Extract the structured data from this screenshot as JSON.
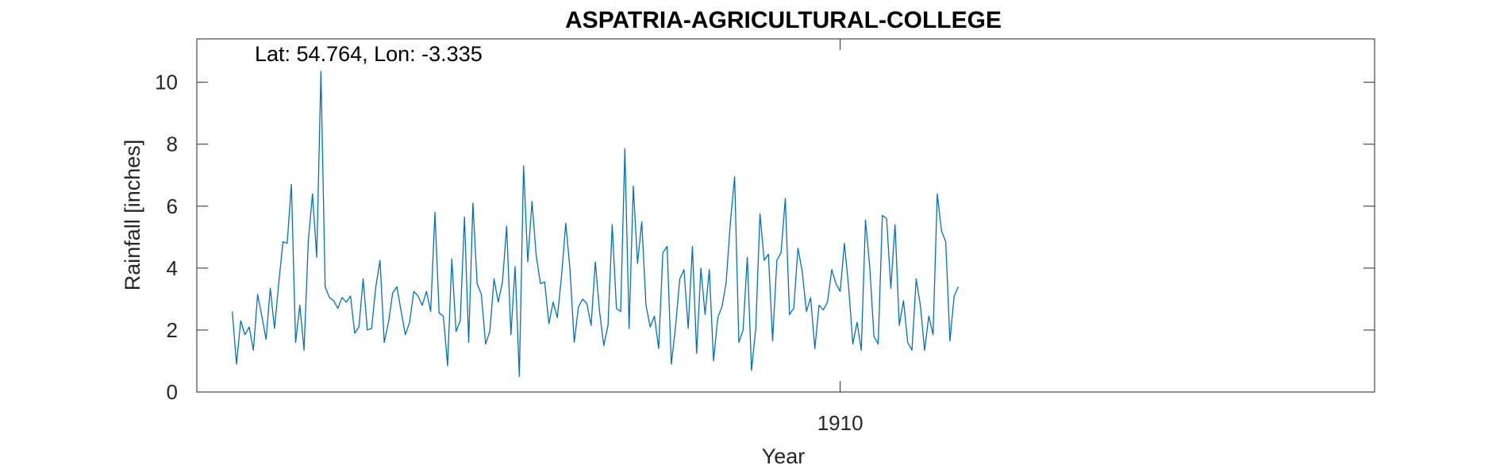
{
  "chart_data": {
    "type": "line",
    "title": "ASPATRIA-AGRICULTURAL-COLLEGE",
    "xlabel": "Year",
    "ylabel": "Rainfall [inches]",
    "annotation": "Lat: 54.764, Lon: -3.335",
    "xlim": [
      1897.3,
      1920.55
    ],
    "ylim": [
      0,
      11.4
    ],
    "xticks": [
      1910
    ],
    "yticks": [
      0,
      2,
      4,
      6,
      8,
      10
    ],
    "grid": false,
    "line_color": "#0072BD",
    "series": [
      {
        "x_start_year": 1898,
        "x_step_months": 1,
        "values": [
          2.6,
          0.9,
          2.3,
          1.85,
          2.1,
          1.35,
          3.15,
          2.45,
          1.7,
          3.35,
          2.05,
          3.5,
          4.85,
          4.8,
          6.7,
          1.6,
          2.8,
          1.35,
          4.85,
          6.4,
          4.35,
          10.35,
          3.4,
          3.05,
          2.95,
          2.7,
          3.05,
          2.9,
          3.1,
          1.9,
          2.1,
          3.65,
          2.0,
          2.05,
          3.4,
          4.25,
          1.6,
          2.25,
          3.2,
          3.4,
          2.6,
          1.85,
          2.25,
          3.25,
          3.1,
          2.8,
          3.25,
          2.6,
          5.8,
          2.55,
          2.45,
          0.85,
          4.3,
          1.95,
          2.3,
          5.65,
          1.6,
          6.1,
          3.5,
          3.15,
          1.55,
          1.95,
          3.65,
          2.9,
          3.55,
          5.35,
          1.85,
          4.05,
          0.5,
          7.3,
          4.2,
          6.15,
          4.4,
          3.5,
          3.55,
          2.2,
          2.9,
          2.4,
          3.75,
          5.45,
          3.95,
          1.6,
          2.75,
          3.0,
          2.85,
          2.15,
          4.2,
          2.6,
          1.5,
          2.15,
          5.4,
          2.7,
          2.6,
          7.85,
          2.05,
          6.65,
          4.15,
          5.5,
          2.8,
          2.1,
          2.45,
          1.4,
          4.5,
          4.7,
          0.9,
          2.1,
          3.65,
          3.95,
          2.05,
          4.7,
          1.25,
          4.0,
          2.5,
          3.95,
          1.0,
          2.4,
          2.75,
          3.55,
          5.5,
          6.95,
          1.6,
          2.0,
          4.35,
          0.7,
          2.05,
          5.75,
          4.25,
          4.45,
          1.65,
          4.25,
          4.5,
          6.25,
          2.5,
          2.7,
          4.65,
          3.9,
          2.6,
          3.05,
          1.4,
          2.8,
          2.65,
          2.9,
          3.95,
          3.5,
          3.25,
          4.8,
          3.4,
          1.55,
          2.25,
          1.35,
          5.55,
          4.05,
          1.8,
          1.55,
          5.7,
          5.6,
          3.35,
          5.4,
          2.15,
          2.95,
          1.6,
          1.35,
          3.65,
          2.8,
          1.35,
          2.45,
          1.85,
          6.4,
          5.2,
          4.85,
          1.65,
          3.1,
          3.4
        ]
      }
    ]
  }
}
